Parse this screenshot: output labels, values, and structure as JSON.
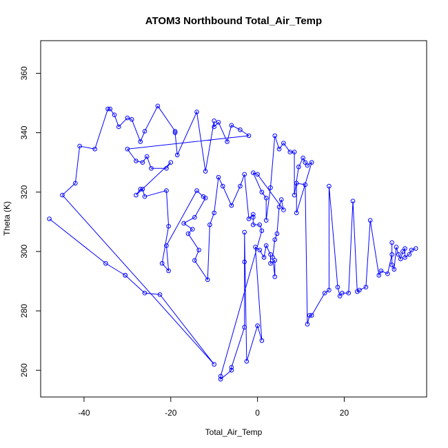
{
  "chart_data": {
    "type": "scatter",
    "title": "ATOM3 Northbound Total_Air_Temp",
    "xlabel": "Total_Air_Temp",
    "ylabel": "Theta (K)",
    "xlim": [
      -50,
      39
    ],
    "ylim": [
      251,
      371
    ],
    "xticks": [
      -40,
      -20,
      0,
      20
    ],
    "yticks": [
      260,
      280,
      300,
      320,
      340,
      360
    ],
    "grid": false,
    "legend": "none",
    "series": [
      {
        "color": "#0000ff",
        "marker": "open-circle",
        "line": true,
        "points": [
          [
            -48,
            311
          ],
          [
            -35,
            296
          ],
          [
            -30.5,
            292
          ],
          [
            -30.5,
            292
          ],
          [
            -26,
            286
          ],
          [
            -22.5,
            285.5
          ],
          [
            -10,
            262
          ],
          [
            -45,
            319
          ],
          [
            -42,
            323
          ],
          [
            -41,
            335.5
          ],
          [
            -37.5,
            334.5
          ],
          [
            -34.5,
            348
          ],
          [
            -34,
            348
          ],
          [
            -33,
            346
          ],
          [
            -32,
            342
          ],
          [
            -30,
            345
          ],
          [
            -29,
            344.5
          ],
          [
            -27,
            337
          ],
          [
            -26,
            340.5
          ],
          [
            -23,
            349
          ],
          [
            -19,
            340.5
          ],
          [
            -19,
            340
          ],
          [
            -18.5,
            332.5
          ],
          [
            -14,
            347
          ],
          [
            -12,
            327
          ],
          [
            -10,
            344
          ],
          [
            -10,
            342
          ],
          [
            -9,
            343.5
          ],
          [
            -7,
            337
          ],
          [
            -6,
            342.5
          ],
          [
            -4,
            341
          ],
          [
            -2,
            339
          ],
          [
            -30,
            334.5
          ],
          [
            -28,
            330.5
          ],
          [
            -26.5,
            330
          ],
          [
            -25.5,
            332
          ],
          [
            -24.5,
            328
          ],
          [
            -21,
            328
          ],
          [
            -20,
            330
          ],
          [
            -28,
            319
          ],
          [
            -27,
            321
          ],
          [
            -26.5,
            321
          ],
          [
            -26,
            318.5
          ],
          [
            -21,
            320.5
          ],
          [
            -20.5,
            308.5
          ],
          [
            -22,
            296
          ],
          [
            -20.5,
            293.5
          ],
          [
            -21,
            302
          ],
          [
            -14,
            320.5
          ],
          [
            -12.5,
            318.5
          ],
          [
            -12,
            318
          ],
          [
            -14.5,
            311.5
          ],
          [
            -17,
            309.5
          ],
          [
            -15,
            307.5
          ],
          [
            -16,
            306
          ],
          [
            -13.5,
            300.5
          ],
          [
            -14.5,
            297
          ],
          [
            -11.5,
            290.5
          ],
          [
            -11,
            309
          ],
          [
            -10,
            313
          ],
          [
            -9,
            325
          ],
          [
            -8,
            322
          ],
          [
            -6,
            315.5
          ],
          [
            -4,
            322
          ],
          [
            -3,
            326
          ],
          [
            -2,
            311
          ],
          [
            -1,
            312.5
          ],
          [
            -1,
            311.5
          ],
          [
            -1,
            309
          ],
          [
            0.5,
            309
          ],
          [
            1,
            307
          ],
          [
            -8.5,
            258
          ],
          [
            -8.5,
            257
          ],
          [
            -6,
            260
          ],
          [
            -6,
            261
          ],
          [
            -3,
            274.5
          ],
          [
            -3,
            296.5
          ],
          [
            -3,
            306.5
          ],
          [
            -2.5,
            263
          ],
          [
            0,
            275
          ],
          [
            1,
            270
          ],
          [
            -0.5,
            301.5
          ],
          [
            0.5,
            300.5
          ],
          [
            1.5,
            298
          ],
          [
            2,
            302
          ],
          [
            3,
            299
          ],
          [
            3,
            296
          ],
          [
            4,
            297
          ],
          [
            4,
            291.5
          ],
          [
            3.5,
            298
          ],
          [
            4,
            304
          ],
          [
            4.5,
            306
          ],
          [
            5,
            315
          ],
          [
            5.5,
            317.5
          ],
          [
            6,
            314
          ],
          [
            0,
            326
          ],
          [
            -1,
            326.5
          ],
          [
            1,
            320
          ],
          [
            2,
            318
          ],
          [
            2,
            310.5
          ],
          [
            3,
            321.5
          ],
          [
            4,
            339
          ],
          [
            5,
            334.5
          ],
          [
            6,
            336.5
          ],
          [
            7.5,
            333.5
          ],
          [
            8.5,
            333.5
          ],
          [
            8.5,
            319
          ],
          [
            9.5,
            328.5
          ],
          [
            10.5,
            331.5
          ],
          [
            11,
            330
          ],
          [
            11.5,
            329
          ],
          [
            12.5,
            330
          ],
          [
            9,
            313
          ],
          [
            9,
            323
          ],
          [
            11,
            322.5
          ],
          [
            11.5,
            275.5
          ],
          [
            12,
            278.5
          ],
          [
            12.5,
            278.5
          ],
          [
            15.5,
            286
          ],
          [
            16.5,
            287
          ],
          [
            16.5,
            322
          ],
          [
            18.5,
            288
          ],
          [
            19,
            285
          ],
          [
            19.5,
            286
          ],
          [
            21,
            286
          ],
          [
            22,
            317
          ],
          [
            23,
            286.5
          ],
          [
            23.5,
            287
          ],
          [
            25,
            288
          ],
          [
            26,
            310.5
          ],
          [
            28,
            292
          ],
          [
            28.5,
            293.5
          ],
          [
            30,
            292.5
          ],
          [
            31,
            299
          ],
          [
            31,
            303
          ],
          [
            31,
            295.5
          ],
          [
            31.5,
            294
          ],
          [
            32,
            301.5
          ],
          [
            32.5,
            299
          ],
          [
            33,
            297.5
          ],
          [
            33.5,
            300
          ],
          [
            34,
            301
          ],
          [
            34,
            298
          ],
          [
            35,
            299
          ],
          [
            35.5,
            300.5
          ],
          [
            36.5,
            301
          ]
        ]
      }
    ]
  }
}
